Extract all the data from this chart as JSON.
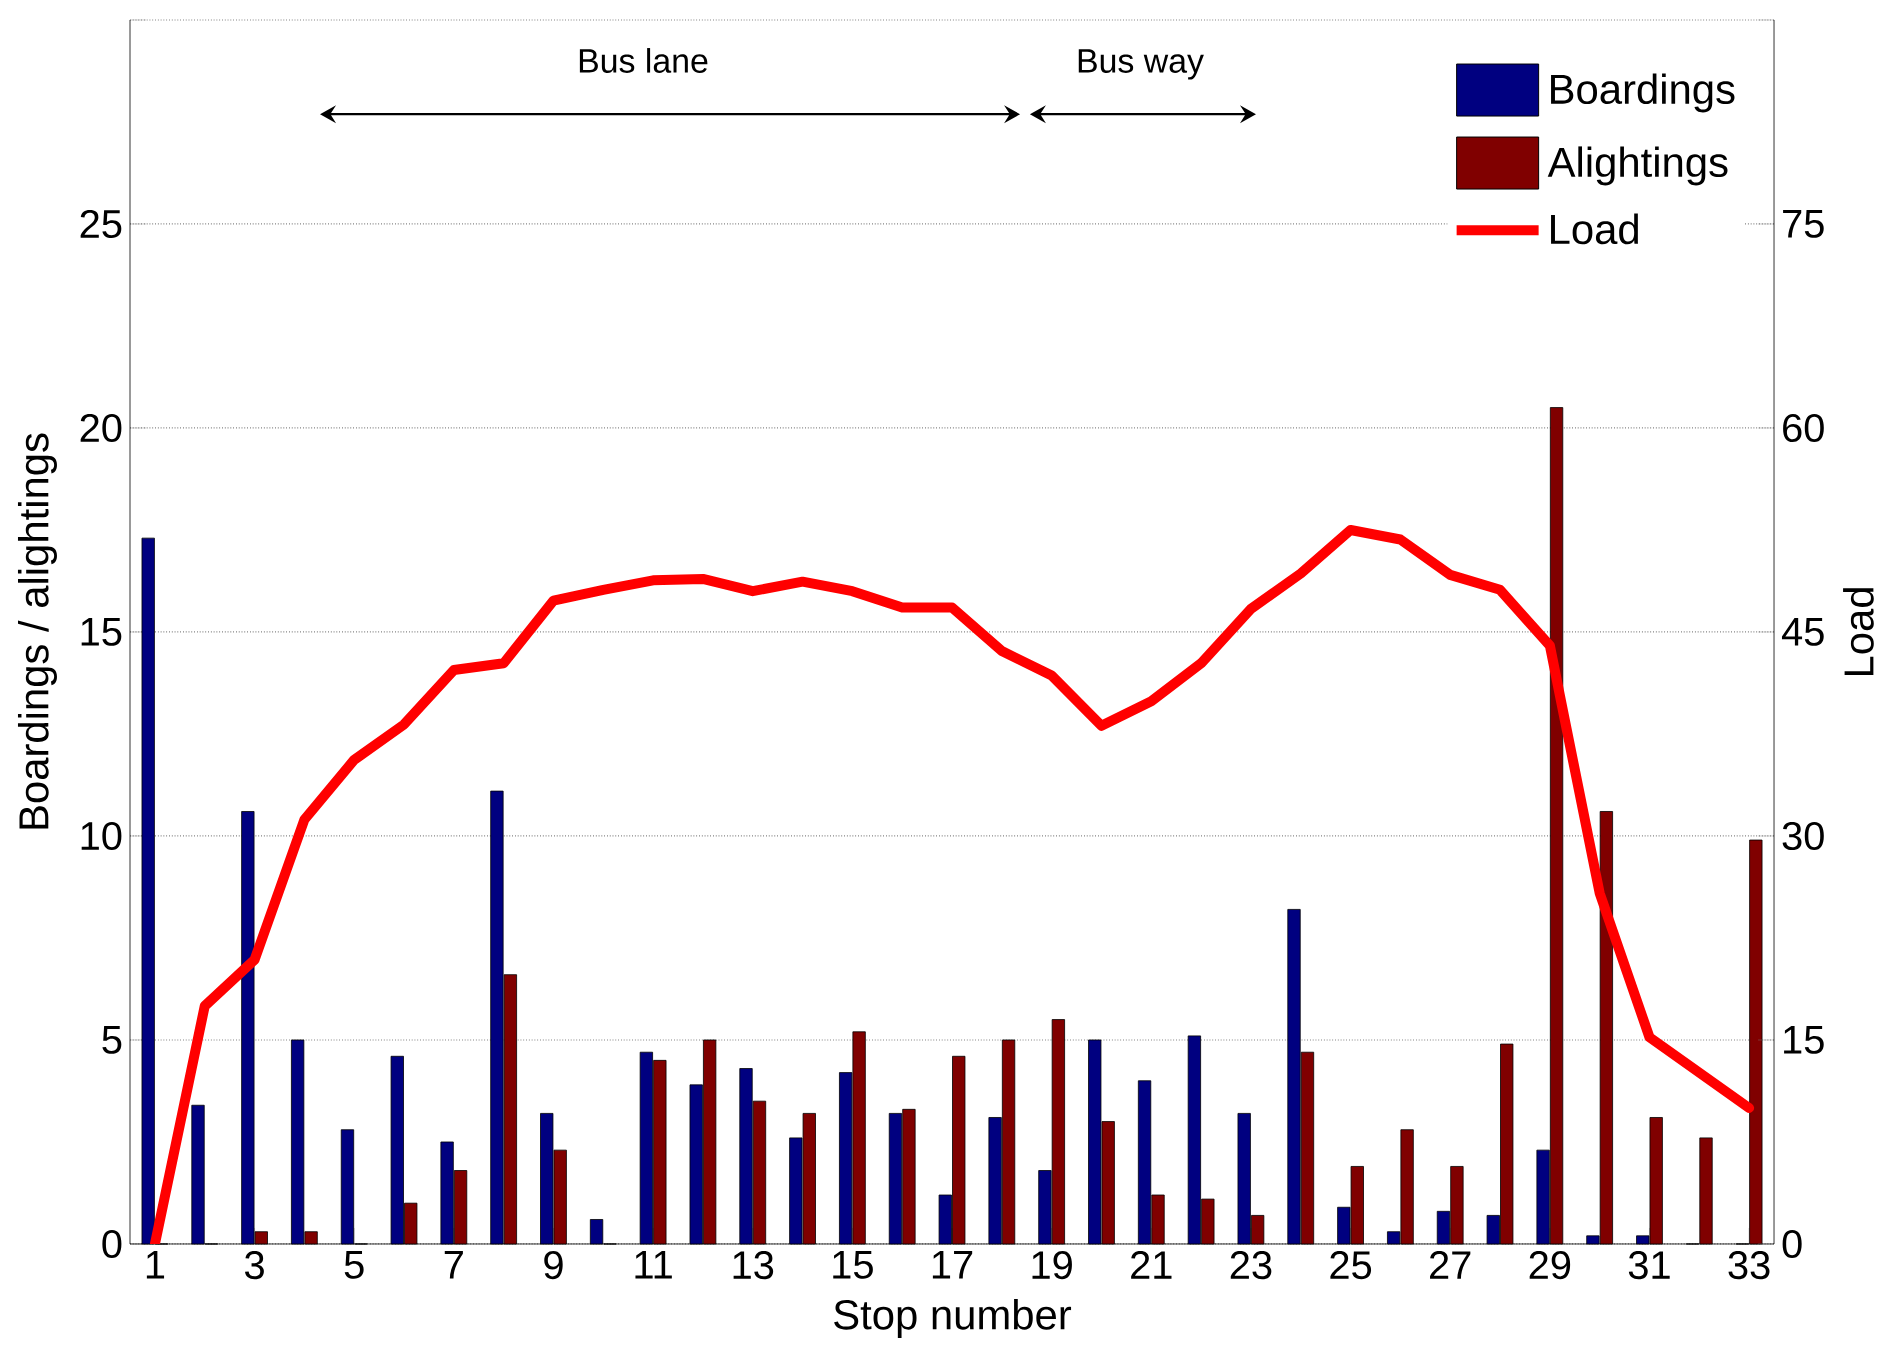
{
  "chart_data": {
    "type": "bar",
    "xlabel": "Stop number",
    "ylabel": "Boardings / alightings",
    "y2label": "Load",
    "x": [
      1,
      2,
      3,
      4,
      5,
      6,
      7,
      8,
      9,
      10,
      11,
      12,
      13,
      14,
      15,
      16,
      17,
      18,
      19,
      20,
      21,
      22,
      23,
      24,
      25,
      26,
      27,
      28,
      29,
      30,
      31,
      32,
      33
    ],
    "xlim": [
      0.5,
      33.5
    ],
    "xticks": [
      1,
      3,
      5,
      7,
      9,
      11,
      13,
      15,
      17,
      19,
      21,
      23,
      25,
      27,
      29,
      31,
      33
    ],
    "ylim": [
      0,
      30
    ],
    "yticks": [
      0,
      5,
      10,
      15,
      20,
      25,
      {
        "value": 30,
        "label": null
      }
    ],
    "y2lim": [
      0,
      90
    ],
    "y2ticks": [
      0,
      15,
      30,
      45,
      60,
      75,
      {
        "value": 90,
        "label": null
      }
    ],
    "grid": "y",
    "legend": "top right",
    "series": [
      {
        "name": "Boardings",
        "color": "#000080",
        "values": [
          17.3,
          3.4,
          10.6,
          5.0,
          2.8,
          4.6,
          2.5,
          11.1,
          3.2,
          0.6,
          4.7,
          3.9,
          4.3,
          2.6,
          4.2,
          3.2,
          1.2,
          3.1,
          1.8,
          5.0,
          4.0,
          5.1,
          3.2,
          8.2,
          0.9,
          0.3,
          0.8,
          0.7,
          2.3,
          0.2,
          0.2,
          0,
          0
        ]
      },
      {
        "name": "Alightings",
        "color": "#800000",
        "values": [
          0,
          0,
          0.3,
          0.3,
          0,
          1.0,
          1.8,
          6.6,
          2.3,
          0,
          4.5,
          5.0,
          3.5,
          3.2,
          5.2,
          3.3,
          4.6,
          5.0,
          5.5,
          3.0,
          1.2,
          1.1,
          0.7,
          4.7,
          1.9,
          2.8,
          1.9,
          4.9,
          20.5,
          10.6,
          3.1,
          2.6,
          9.9
        ]
      },
      {
        "name": "Load",
        "type": "line",
        "axis": "y2",
        "color": "#ff0000",
        "values": [
          0,
          17.5,
          20.9,
          31.2,
          35.6,
          38.2,
          42.2,
          42.7,
          47.3,
          48.1,
          48.8,
          48.9,
          48.0,
          48.7,
          48.0,
          46.8,
          46.8,
          43.6,
          41.8,
          38.1,
          39.9,
          42.7,
          46.7,
          49.3,
          52.5,
          51.8,
          49.2,
          48.1,
          44.0,
          25.8,
          15.2,
          12.6,
          10.0
        ]
      }
    ],
    "annotations": [
      "Bus lane",
      "Bus way"
    ]
  }
}
